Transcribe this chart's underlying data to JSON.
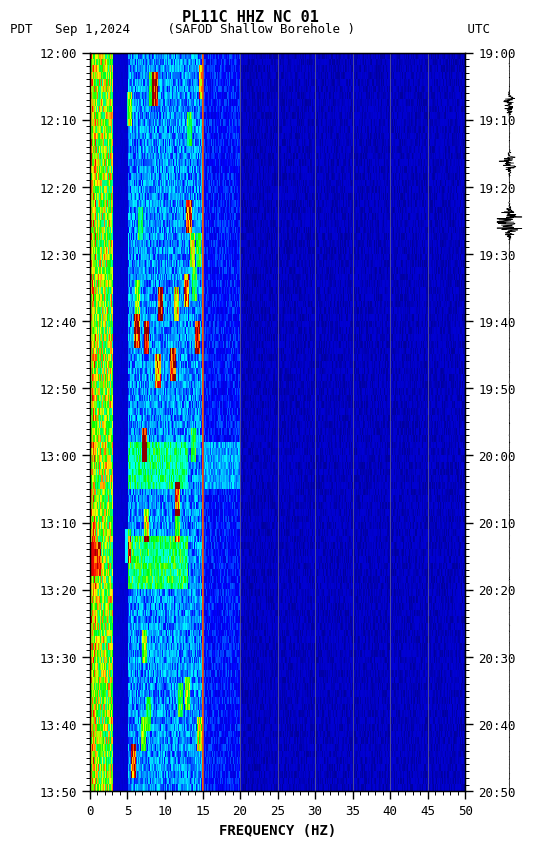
{
  "title_line1": "PL11C HHZ NC 01",
  "title_line2": "PDT   Sep 1,2024     (SAFOD Shallow Borehole )               UTC",
  "xlabel": "FREQUENCY (HZ)",
  "ylabel_left": "PDT",
  "ylabel_right": "UTC",
  "freq_min": 0,
  "freq_max": 50,
  "freq_ticks": [
    0,
    5,
    10,
    15,
    20,
    25,
    30,
    35,
    40,
    45,
    50
  ],
  "time_labels_left": [
    "12:00",
    "12:10",
    "12:20",
    "12:30",
    "12:40",
    "12:50",
    "13:00",
    "13:10",
    "13:20",
    "13:30",
    "13:40",
    "13:50"
  ],
  "time_labels_right": [
    "19:00",
    "19:10",
    "19:20",
    "19:30",
    "19:40",
    "19:50",
    "20:00",
    "20:10",
    "20:20",
    "20:30",
    "20:40",
    "20:50"
  ],
  "n_time": 110,
  "n_freq": 500,
  "vertical_lines_freq": [
    15,
    20,
    25,
    30,
    35,
    40,
    45
  ],
  "bg_color": "white",
  "spectrogram_bg": "#000080",
  "font_family": "monospace"
}
